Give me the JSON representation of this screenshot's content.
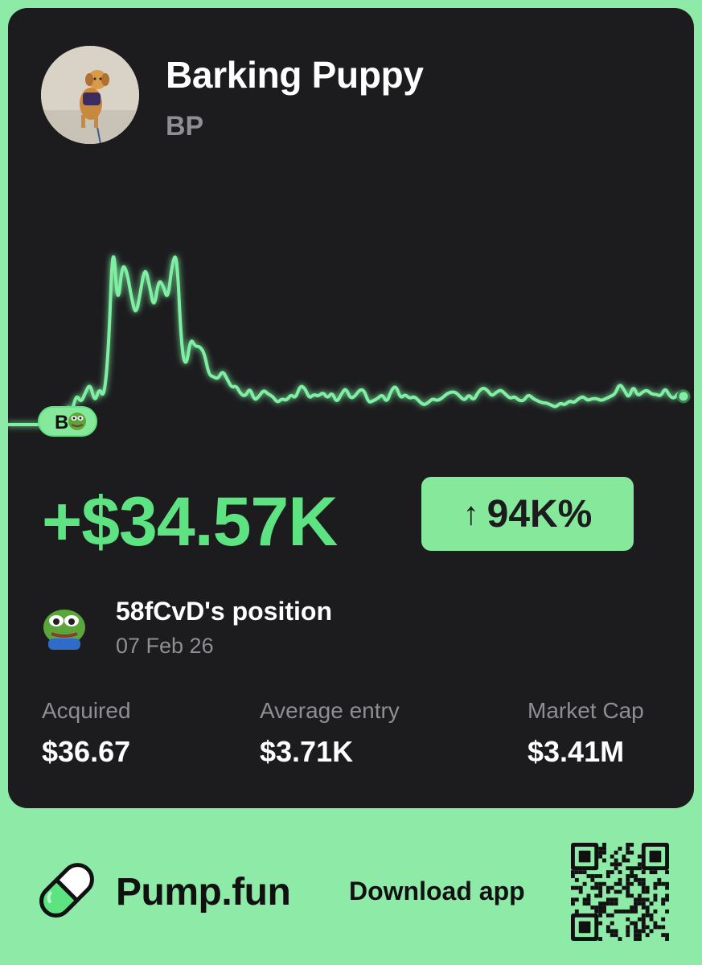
{
  "token": {
    "name": "Barking Puppy",
    "symbol": "BP",
    "avatar_icon": "puppy-photo-icon"
  },
  "chart_data": {
    "type": "line",
    "title": "",
    "xlabel": "",
    "ylabel": "",
    "ylim": [
      0,
      100
    ],
    "line_color": "#7ff0a3",
    "grid": false,
    "entry_marker": {
      "letter": "B",
      "index": 0
    },
    "values": [
      0,
      0,
      0,
      0,
      0,
      0,
      0,
      0,
      0,
      0,
      0,
      0,
      2,
      9,
      6,
      14,
      10,
      15,
      19,
      10,
      17,
      12,
      33,
      88,
      53,
      74,
      71,
      59,
      50,
      61,
      73,
      64,
      53,
      67,
      64,
      57,
      75,
      79,
      35,
      26,
      40,
      36,
      36,
      33,
      23,
      22,
      21,
      25,
      21,
      17,
      18,
      14,
      13,
      17,
      11,
      13,
      16,
      14,
      13,
      10,
      12,
      11,
      14,
      12,
      18,
      17,
      12,
      14,
      13,
      15,
      12,
      15,
      10,
      14,
      17,
      12,
      13,
      16,
      16,
      10,
      11,
      12,
      14,
      10,
      16,
      18,
      12,
      14,
      12,
      13,
      11,
      9,
      10,
      12,
      11,
      12,
      14,
      15,
      15,
      13,
      11,
      14,
      11,
      15,
      17,
      16,
      13,
      15,
      16,
      14,
      12,
      13,
      11,
      11,
      14,
      12,
      11,
      10,
      10,
      9,
      8,
      10,
      9,
      11,
      10,
      12,
      13,
      11,
      12,
      12,
      11,
      12,
      13,
      14,
      19,
      16,
      12,
      18,
      13,
      15,
      16,
      14,
      14,
      13,
      17,
      13,
      12,
      15,
      13
    ]
  },
  "pnl": {
    "amount": "+$34.57K",
    "percent": "94K%",
    "arrow_icon": "arrow-up-icon"
  },
  "position": {
    "title": "58fCvD's position",
    "date": "07 Feb 26",
    "avatar_icon": "pepe-frog-icon"
  },
  "stats": [
    {
      "label": "Acquired",
      "value": "$36.67"
    },
    {
      "label": "Average entry",
      "value": "$3.71K"
    },
    {
      "label": "Market Cap",
      "value": "$3.41M"
    }
  ],
  "footer": {
    "brand": "Pump.fun",
    "download": "Download app",
    "logo_icon": "pill-icon",
    "qr_icon": "qr-code-icon"
  },
  "colors": {
    "background": "#8eeaa7",
    "card": "#1c1c1e",
    "accent_green": "#5ee383",
    "badge_green": "#86e89a",
    "muted_text": "#8e8e93"
  }
}
